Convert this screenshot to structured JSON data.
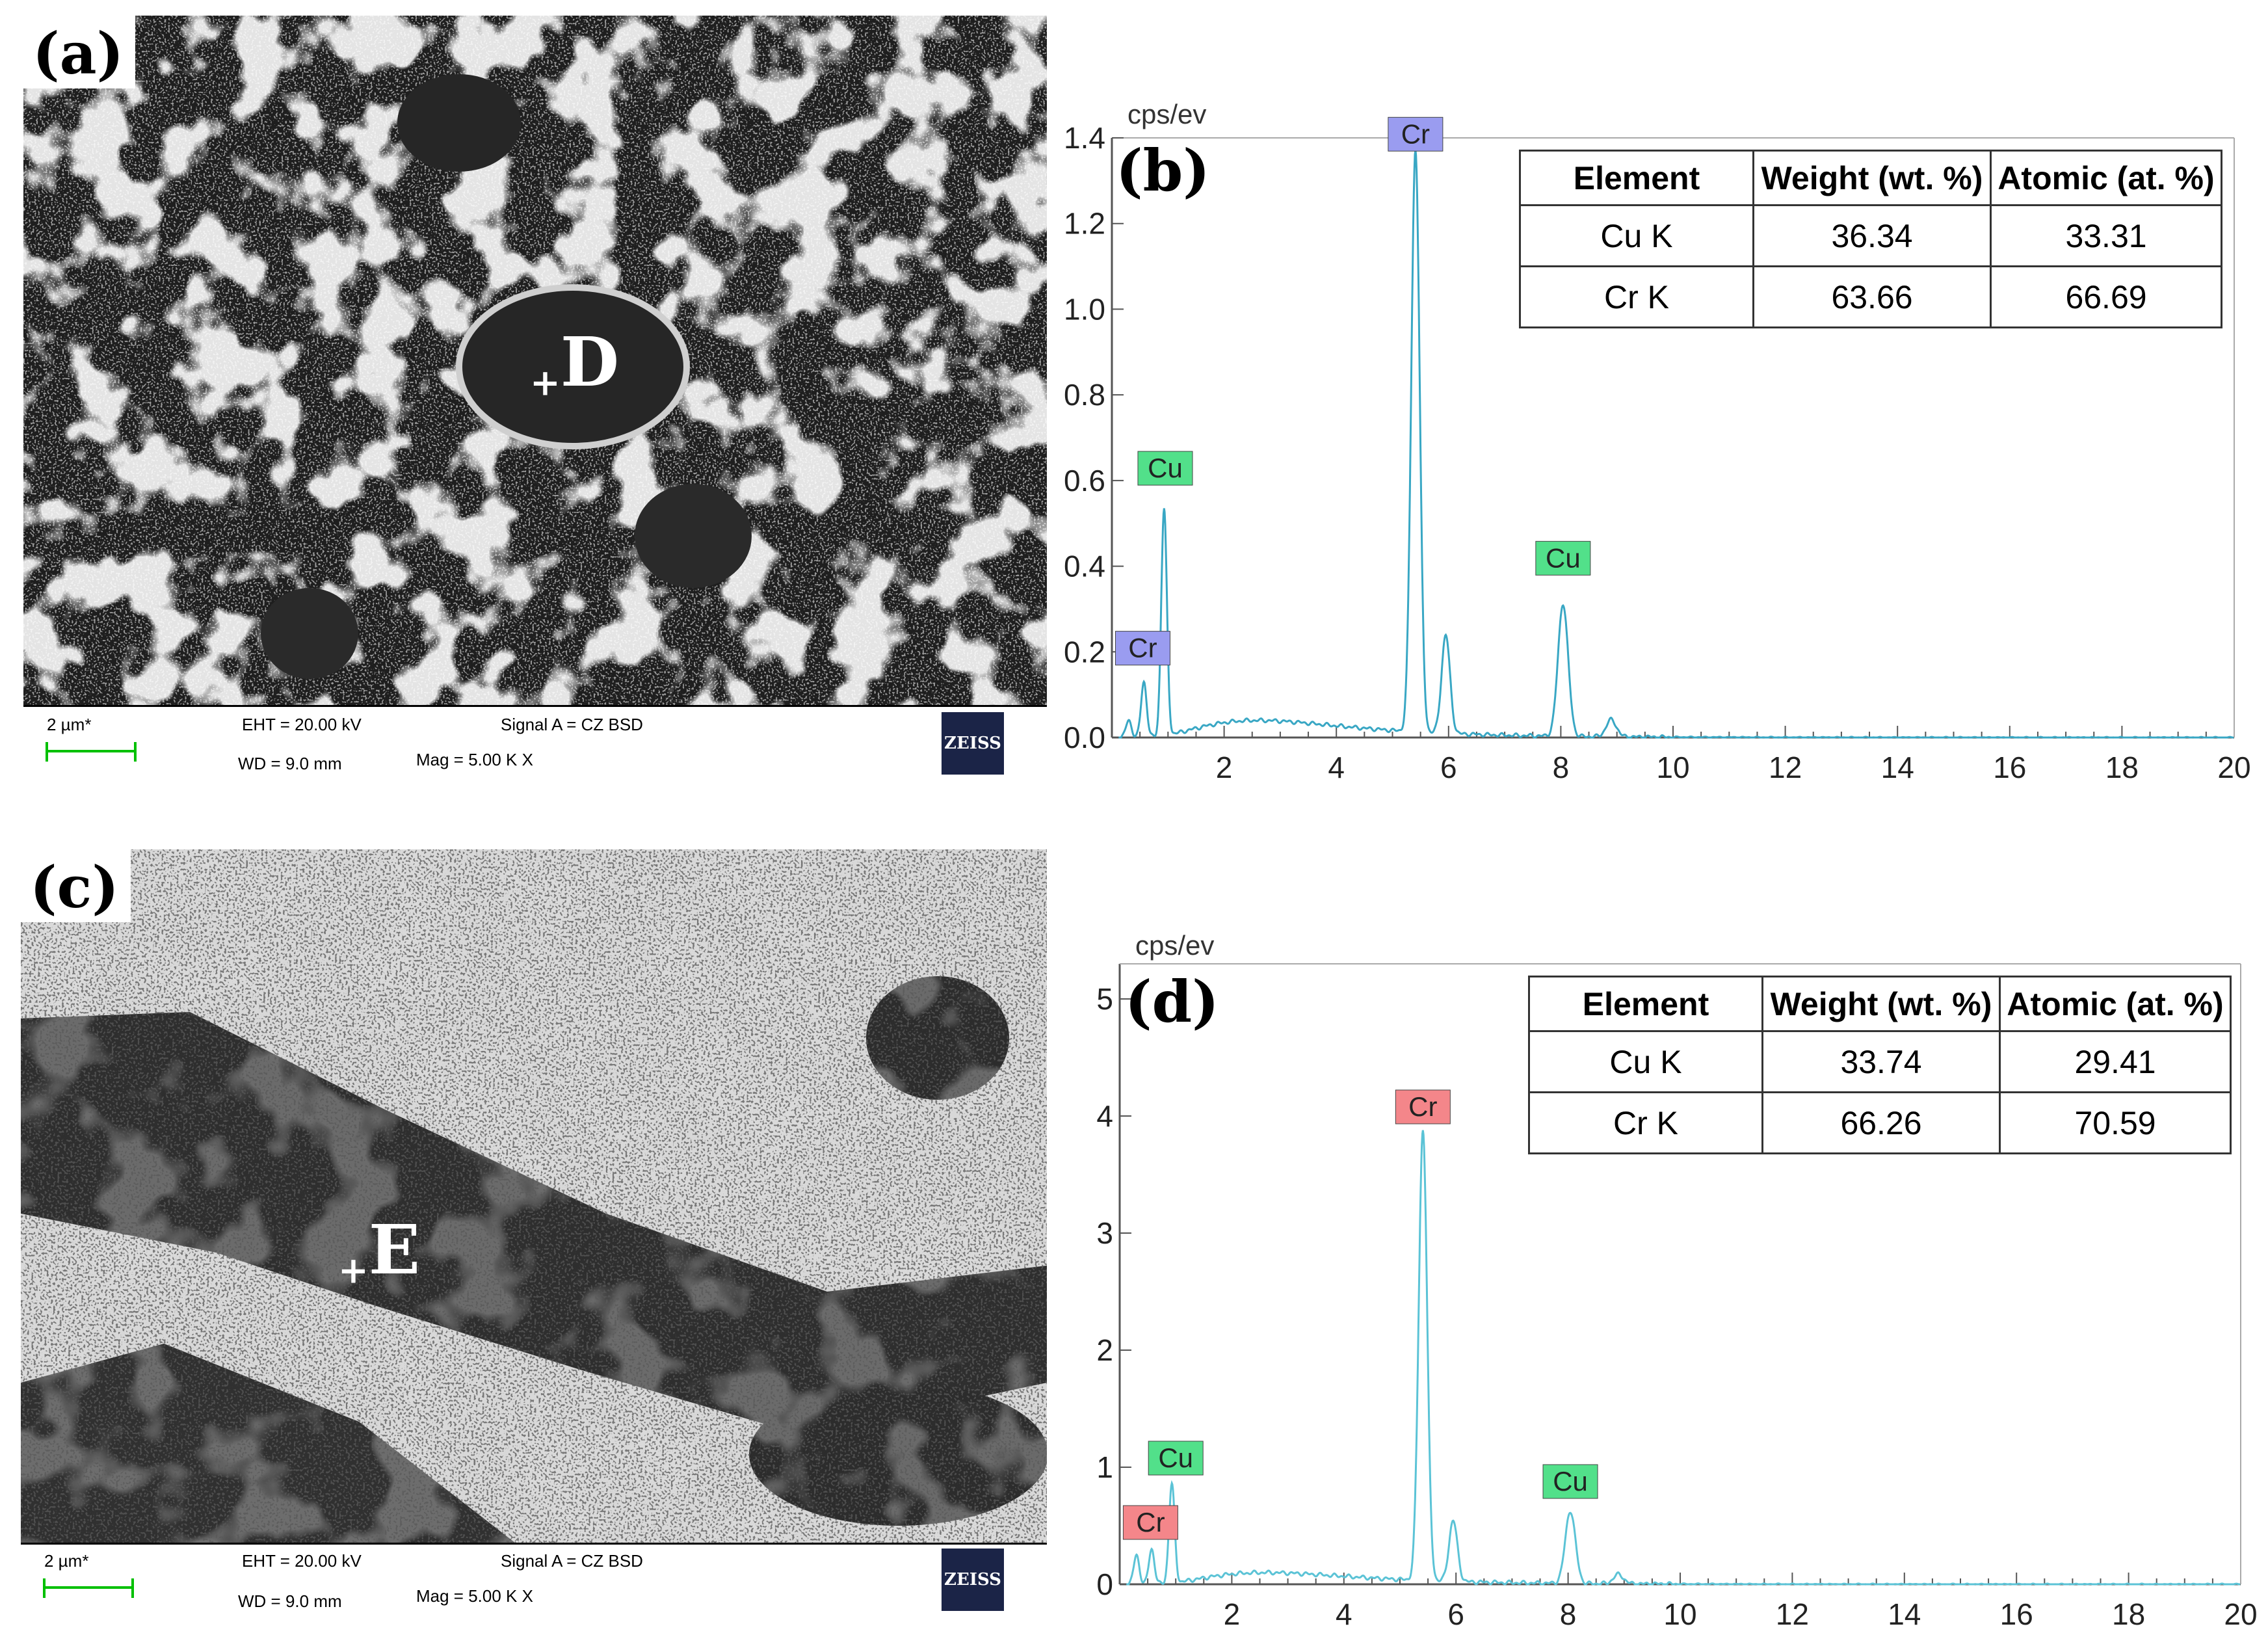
{
  "panels": {
    "a": {
      "label": "(a)",
      "marker": "D",
      "databar": {
        "scale": "2 µm*",
        "eht": "EHT = 20.00 kV",
        "signal": "Signal A = CZ BSD",
        "wd": "WD =  9.0 mm",
        "mag": "Mag =    5.00 K X",
        "brand": "ZEISS"
      }
    },
    "c": {
      "label": "(c)",
      "marker": "E",
      "databar": {
        "scale": "2 µm*",
        "eht": "EHT = 20.00 kV",
        "signal": "Signal A = CZ BSD",
        "wd": "WD =  9.0 mm",
        "mag": "Mag =    5.00 K X",
        "brand": "ZEISS"
      }
    }
  },
  "chart_data": [
    {
      "type": "line",
      "panel": "(b)",
      "ylabel": "cps/ev",
      "xlim": [
        0,
        20
      ],
      "ylim": [
        0,
        1.4
      ],
      "xticks": [
        2,
        4,
        6,
        8,
        10,
        12,
        14,
        16,
        18,
        20
      ],
      "yticks": [
        "0.0",
        "0.2",
        "0.4",
        "0.6",
        "0.8",
        "1.0",
        "1.2",
        "1.4"
      ],
      "line_color": "#39a7c4",
      "peaks": [
        {
          "x": 0.3,
          "y": 0.04,
          "w": 0.05
        },
        {
          "x": 0.57,
          "y": 0.13,
          "w": 0.05
        },
        {
          "x": 0.93,
          "y": 0.53,
          "w": 0.05
        },
        {
          "x": 5.41,
          "y": 1.36,
          "w": 0.075
        },
        {
          "x": 5.95,
          "y": 0.23,
          "w": 0.075
        },
        {
          "x": 8.04,
          "y": 0.31,
          "w": 0.09
        },
        {
          "x": 8.9,
          "y": 0.04,
          "w": 0.09
        }
      ],
      "background": {
        "peak": 0.04,
        "center": 2.6
      },
      "annotations": [
        {
          "text": "Cr",
          "x": 0.55,
          "y": 0.16,
          "color": "#9a9cf0"
        },
        {
          "text": "Cu",
          "x": 0.95,
          "y": 0.58,
          "color": "#52e08a"
        },
        {
          "text": "Cr",
          "x": 5.41,
          "y": 1.36,
          "color": "#9a9cf0"
        },
        {
          "text": "Cu",
          "x": 8.04,
          "y": 0.37,
          "color": "#52e08a"
        }
      ],
      "table": {
        "headers": [
          "Element",
          "Weight (wt. %)",
          "Atomic (at. %)"
        ],
        "rows": [
          [
            "Cu K",
            "36.34",
            "33.31"
          ],
          [
            "Cr K",
            "63.66",
            "66.69"
          ]
        ]
      }
    },
    {
      "type": "line",
      "panel": "(d)",
      "ylabel": "cps/ev",
      "xlim": [
        0,
        20
      ],
      "ylim": [
        0,
        5.3
      ],
      "xticks": [
        2,
        4,
        6,
        8,
        10,
        12,
        14,
        16,
        18,
        20
      ],
      "yticks": [
        "0",
        "1",
        "2",
        "3",
        "4",
        "5"
      ],
      "line_color": "#5bc3d6",
      "peaks": [
        {
          "x": 0.3,
          "y": 0.25,
          "w": 0.05
        },
        {
          "x": 0.57,
          "y": 0.3,
          "w": 0.05
        },
        {
          "x": 0.93,
          "y": 0.85,
          "w": 0.05
        },
        {
          "x": 5.41,
          "y": 3.85,
          "w": 0.075
        },
        {
          "x": 5.95,
          "y": 0.52,
          "w": 0.075
        },
        {
          "x": 8.04,
          "y": 0.62,
          "w": 0.09
        },
        {
          "x": 8.9,
          "y": 0.08,
          "w": 0.09
        }
      ],
      "background": {
        "peak": 0.1,
        "center": 2.6
      },
      "annotations": [
        {
          "text": "Cr",
          "x": 0.55,
          "y": 0.35,
          "color": "#f4868a"
        },
        {
          "text": "Cu",
          "x": 1.0,
          "y": 0.9,
          "color": "#52e08a"
        },
        {
          "text": "Cr",
          "x": 5.41,
          "y": 3.9,
          "color": "#f4868a"
        },
        {
          "text": "Cu",
          "x": 8.04,
          "y": 0.7,
          "color": "#52e08a"
        }
      ],
      "table": {
        "headers": [
          "Element",
          "Weight (wt. %)",
          "Atomic (at. %)"
        ],
        "rows": [
          [
            "Cu K",
            "33.74",
            "29.41"
          ],
          [
            "Cr K",
            "66.26",
            "70.59"
          ]
        ]
      }
    }
  ]
}
